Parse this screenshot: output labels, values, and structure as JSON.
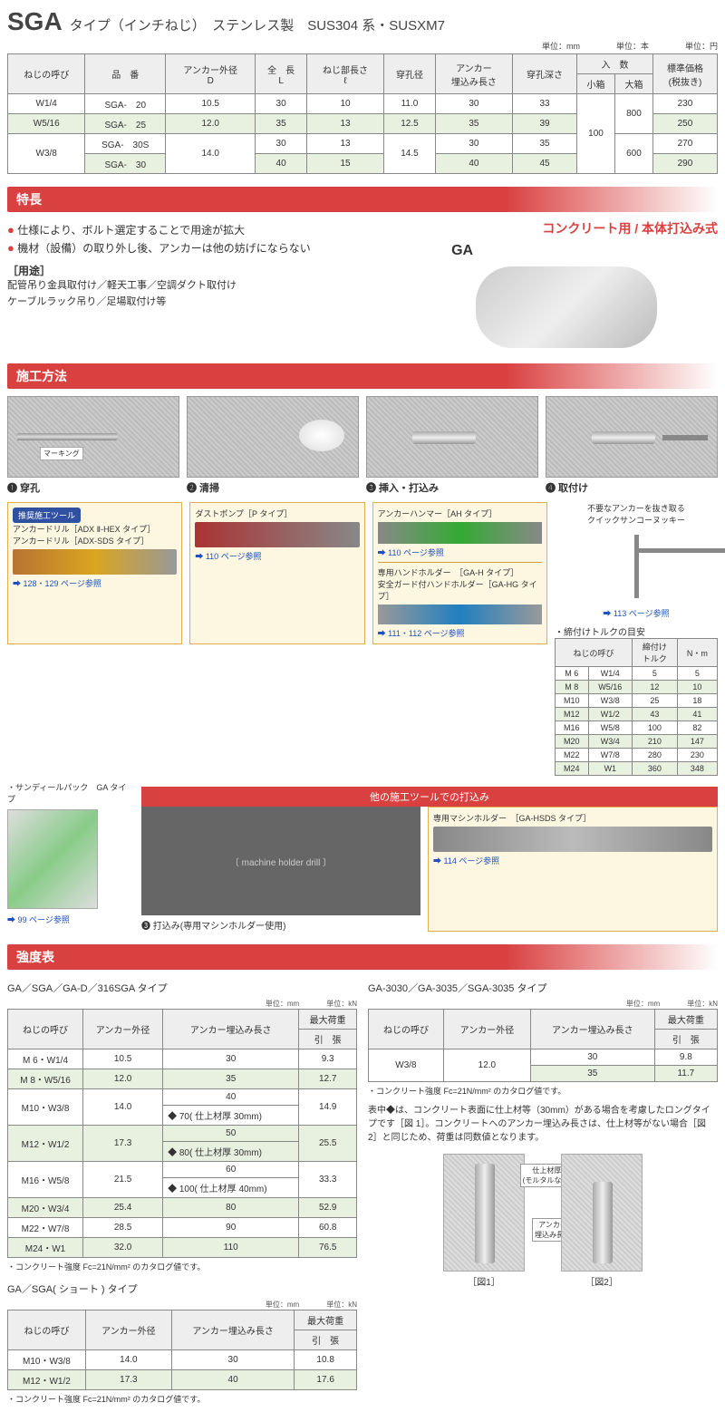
{
  "title": {
    "main": "SGA",
    "sub": "タイプ（インチねじ）　ステンレス製　SUS304 系・SUSXM7"
  },
  "units_top": {
    "mm": "単位：mm",
    "hon": "単位：本",
    "yen": "単位：円"
  },
  "spec_table": {
    "headers": {
      "thread": "ねじの呼び",
      "part": "品　番",
      "diameter": "アンカー外径\nD",
      "length": "全　長\nL",
      "thread_len": "ねじ部長さ\nℓ",
      "hole_dia": "穿孔径",
      "embed": "アンカー\n埋込み長さ",
      "hole_depth": "穿孔深さ",
      "qty": "入　数",
      "qty_small": "小箱",
      "qty_large": "大箱",
      "price": "標準価格\n(税抜き)"
    },
    "rows": [
      {
        "thread": "W1/4",
        "part": "SGA-　20",
        "d": "10.5",
        "l": "30",
        "tl": "10",
        "hd": "11.0",
        "em": "30",
        "dep": "33",
        "price": "230"
      },
      {
        "thread": "W5/16",
        "part": "SGA-　25",
        "d": "12.0",
        "l": "35",
        "tl": "13",
        "hd": "12.5",
        "em": "35",
        "dep": "39",
        "price": "250"
      },
      {
        "thread": "W3/8",
        "part": "SGA-　30S",
        "d": "14.0",
        "l": "30",
        "tl": "13",
        "hd": "14.5",
        "em": "30",
        "dep": "35",
        "price": "270"
      },
      {
        "thread": "",
        "part": "SGA-　30",
        "d": "",
        "l": "40",
        "tl": "15",
        "hd": "",
        "em": "40",
        "dep": "45",
        "price": "290"
      }
    ],
    "qty_small_val": "100",
    "qty_large_1": "800",
    "qty_large_2": "600"
  },
  "sections": {
    "features": "特長",
    "method": "施工方法",
    "strength": "強度表"
  },
  "features": {
    "red_header": "コンクリート用 / 本体打込み式",
    "line1": "仕様により、ボルト選定することで用途が拡大",
    "line2": "機材（設備）の取り外し後、アンカーは他の妨げにならない",
    "usage_h": "［用途］",
    "usage1": "配管吊り金具取付け／軽天工事／空調ダクト取付け",
    "usage2": "ケーブルラック吊り／足場取付け等",
    "ga": "GA"
  },
  "steps": {
    "s1": "❶ 穿孔",
    "s2": "❷ 清掃",
    "s3": "❸ 挿入・打込み",
    "s4": "❹ 取付け",
    "marking": "マーキング"
  },
  "tools": {
    "badge": "推奨施工ツール",
    "drill1": "アンカードリル［ADX Ⅱ-HEX タイプ］",
    "drill2": "アンカードリル［ADX-SDS タイプ］",
    "drill_ref": "128・129 ページ参照",
    "dust": "ダストポンプ［P タイプ］",
    "dust_ref": "110 ページ参照",
    "hammer": "アンカーハンマー［AH タイプ］",
    "hammer_ref": "110 ページ参照",
    "holder": "専用ハンドホルダー　［GA-H タイプ］\n安全ガード付ハンドホルダー［GA-HG タイプ］",
    "holder_ref": "111・112 ページ参照",
    "remover_h": "不要なアンカーを抜き取る\nクイックサンコーヌッキー",
    "remover_ref": "113 ページ参照",
    "torque_h": "・締付けトルクの目安"
  },
  "torque_table": {
    "h1": "ねじの呼び",
    "h2": "締付け\nトルク",
    "h3": "N・m",
    "rows": [
      {
        "a": "M 6",
        "b": "W1/4",
        "c": "5",
        "d": "5"
      },
      {
        "a": "M 8",
        "b": "W5/16",
        "c": "12",
        "d": "10"
      },
      {
        "a": "M10",
        "b": "W3/8",
        "c": "25",
        "d": "18"
      },
      {
        "a": "M12",
        "b": "W1/2",
        "c": "43",
        "d": "41"
      },
      {
        "a": "M16",
        "b": "W5/8",
        "c": "100",
        "d": "82"
      },
      {
        "a": "M20",
        "b": "W3/4",
        "c": "210",
        "d": "147"
      },
      {
        "a": "M22",
        "b": "W7/8",
        "c": "280",
        "d": "230"
      },
      {
        "a": "M24",
        "b": "W1",
        "c": "360",
        "d": "348"
      }
    ]
  },
  "sandy": {
    "title": "・サンディールパック　GA タイプ",
    "ref": "99 ページ参照"
  },
  "other_tools": {
    "bar": "他の施工ツールでの打込み",
    "machine_cap": "❸ 打込み(専用マシンホルダー使用)",
    "holder_m": "専用マシンホルダー　［GA-HSDS タイプ］",
    "holder_m_ref": "114 ページ参照"
  },
  "strength": {
    "title1": "GA／SGA／GA-D／316SGA タイプ",
    "title2": "GA／SGA( ショート ) タイプ",
    "title3": "GA-3030／GA-3035／SGA-3035 タイプ",
    "u_mm": "単位：mm",
    "u_kn": "単位：kN",
    "h_thread": "ねじの呼び",
    "h_dia": "アンカー外径",
    "h_embed": "アンカー埋込み長さ",
    "h_max": "最大荷重",
    "h_pull": "引　張",
    "t1_rows": [
      {
        "a": "M 6・W1/4",
        "b": "10.5",
        "c": "30",
        "d": "9.3"
      },
      {
        "a": "M 8・W5/16",
        "b": "12.0",
        "c": "35",
        "d": "12.7"
      },
      {
        "a": "M10・W3/8",
        "b": "14.0",
        "c": "40",
        "c2": "◆ 70( 仕上材厚 30mm)",
        "d": "14.9"
      },
      {
        "a": "M12・W1/2",
        "b": "17.3",
        "c": "50",
        "c2": "◆ 80( 仕上材厚 30mm)",
        "d": "25.5"
      },
      {
        "a": "M16・W5/8",
        "b": "21.5",
        "c": "60",
        "c2": "◆ 100( 仕上材厚 40mm)",
        "d": "33.3"
      },
      {
        "a": "M20・W3/4",
        "b": "25.4",
        "c": "80",
        "d": "52.9"
      },
      {
        "a": "M22・W7/8",
        "b": "28.5",
        "c": "90",
        "d": "60.8"
      },
      {
        "a": "M24・W1",
        "b": "32.0",
        "c": "110",
        "d": "76.5"
      }
    ],
    "t2_rows": [
      {
        "a": "M10・W3/8",
        "b": "14.0",
        "c": "30",
        "d": "10.8"
      },
      {
        "a": "M12・W1/2",
        "b": "17.3",
        "c": "40",
        "d": "17.6"
      }
    ],
    "t3_rows": [
      {
        "a": "W3/8",
        "b": "12.0",
        "c": "30",
        "d": "9.8"
      },
      {
        "a": "",
        "b": "",
        "c": "35",
        "d": "11.7"
      }
    ],
    "note": "・コンクリート強度 Fc=21N/mm² のカタログ値です。",
    "diagram_note": "表中◆は、コンクリート表面に仕上材等（30mm）がある場合を考慮したロングタイプです［図 1］。コンクリートへのアンカー埋込み長さは、仕上材等がない場合［図 2］と同じため、荷重は同数値となります。",
    "dia_l1": "仕上材厚\n(モルタルなど)",
    "dia_l2": "アンカー\n埋込み長さ",
    "fig1": "［図1］",
    "fig2": "［図2］"
  }
}
